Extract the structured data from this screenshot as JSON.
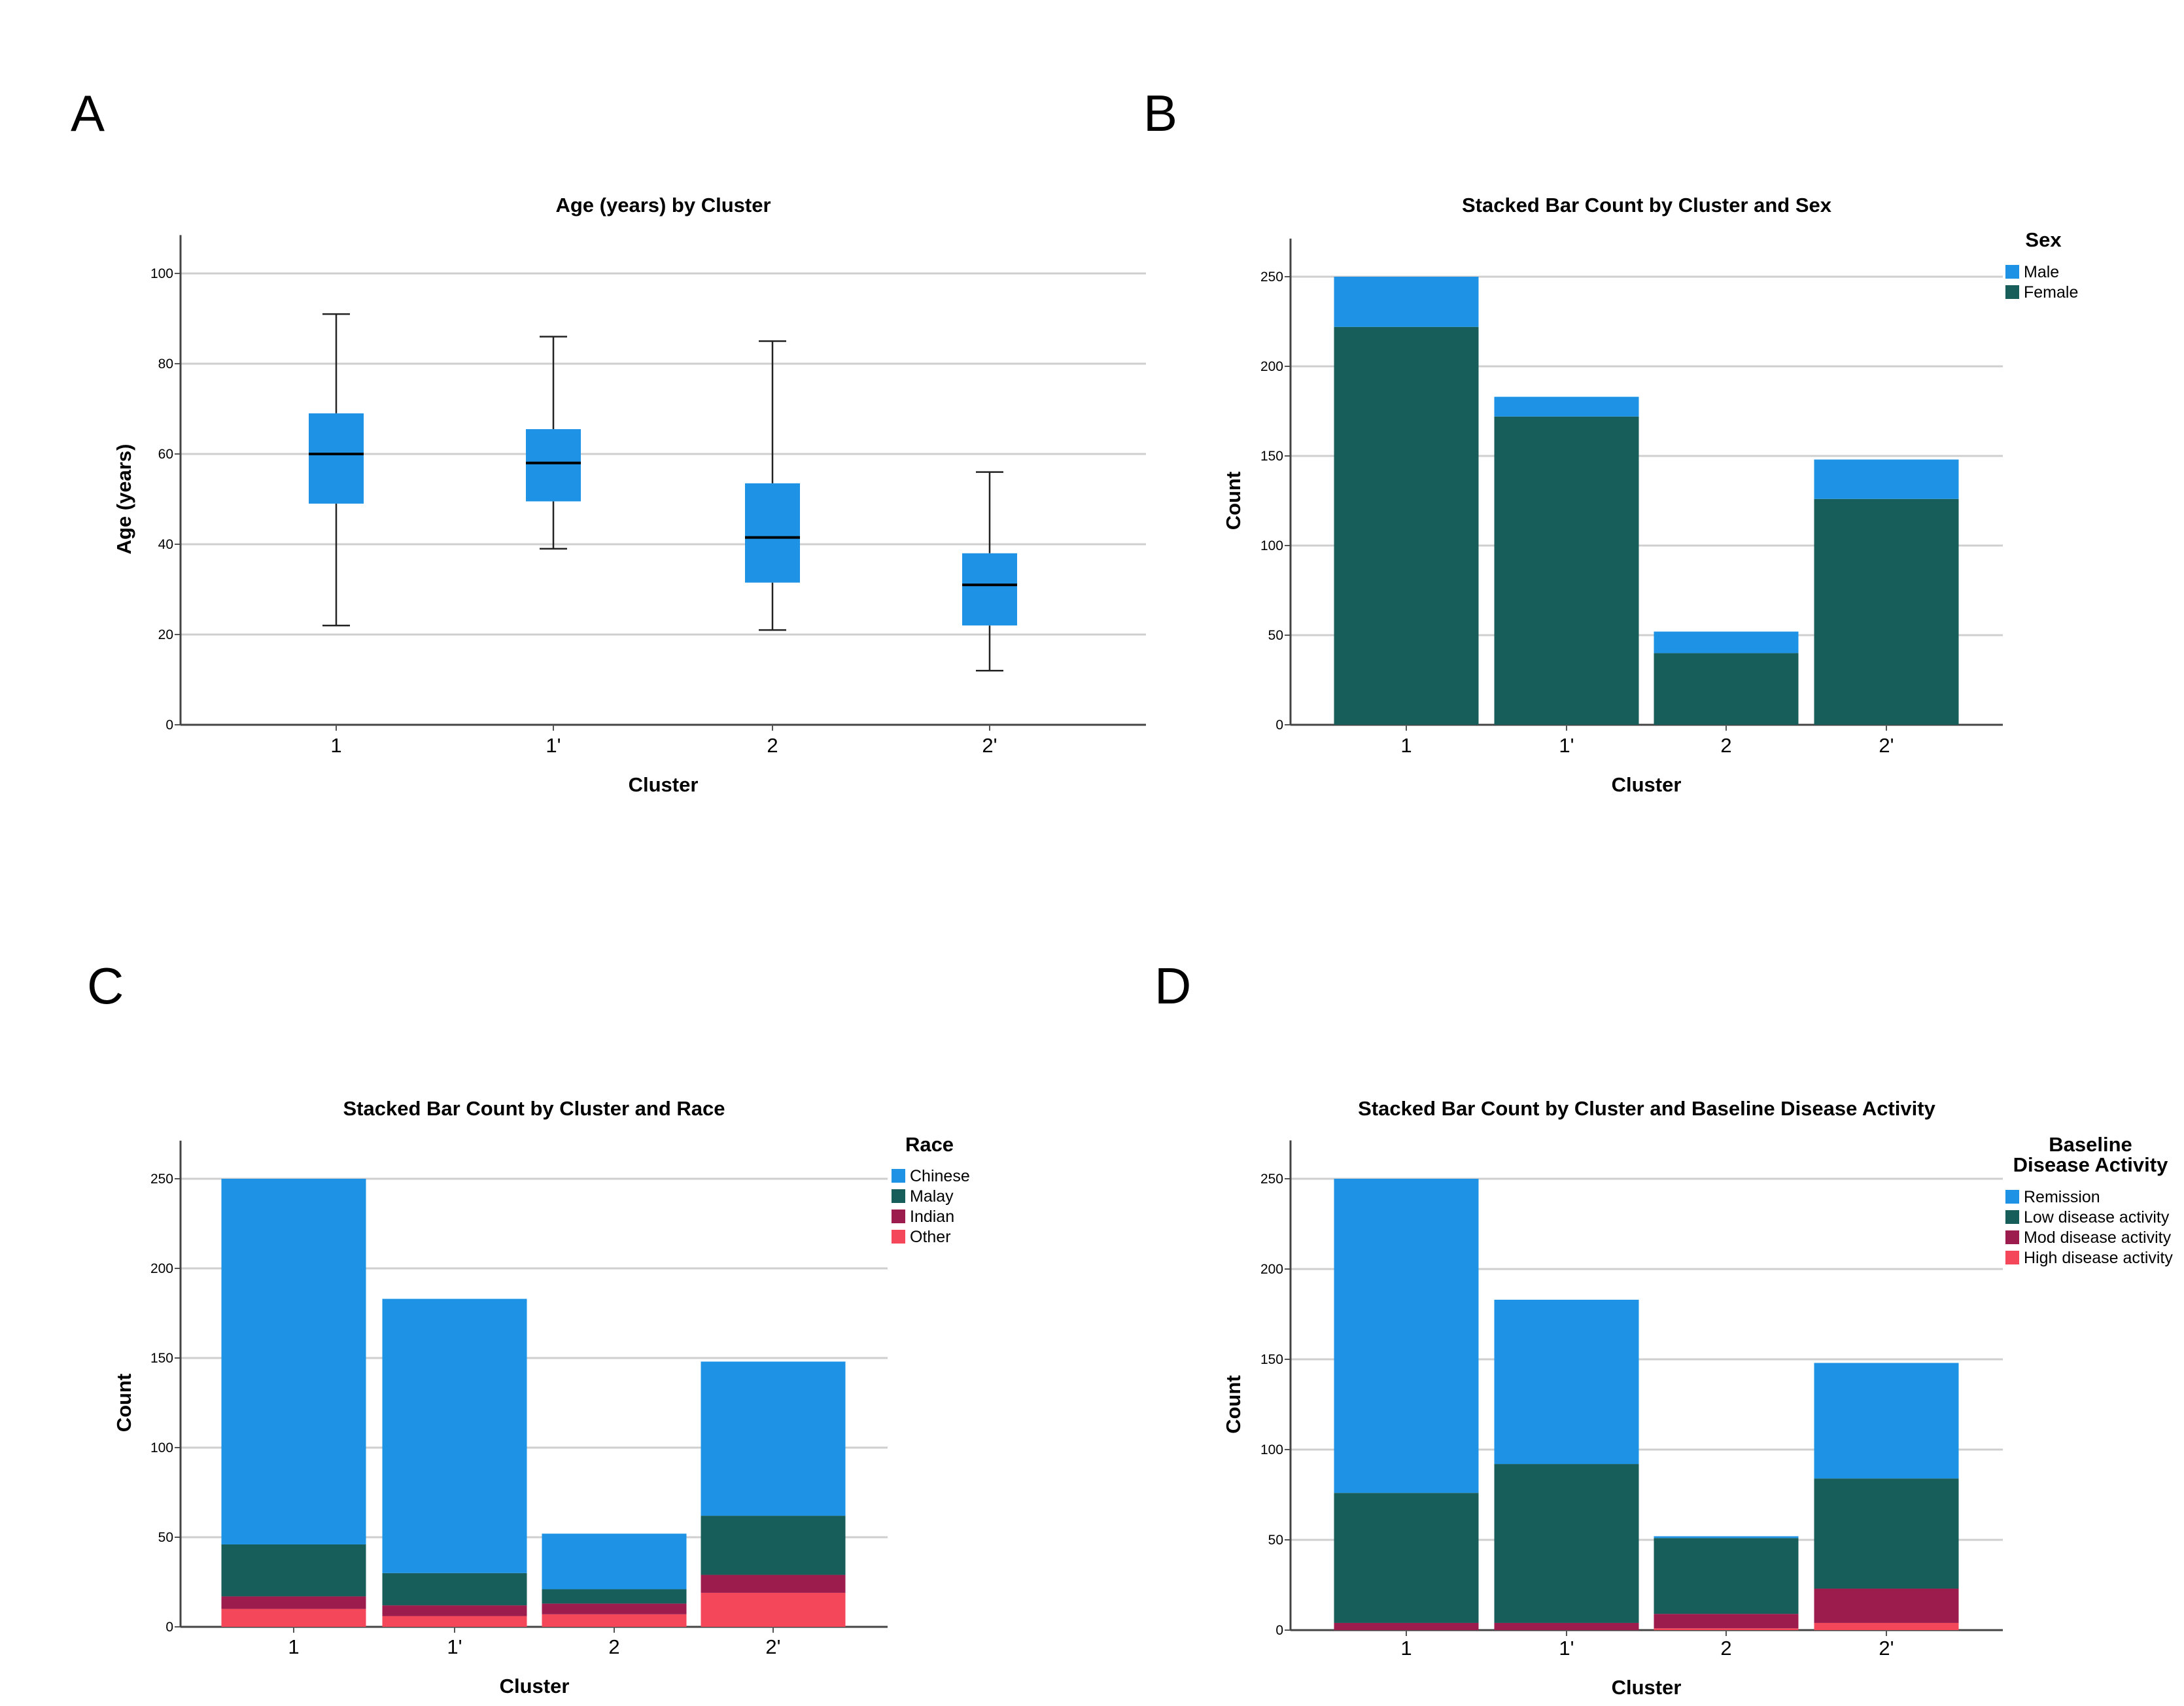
{
  "panels": {
    "a": "A",
    "b": "B",
    "c": "C",
    "d": "D"
  },
  "chart_data": [
    {
      "panel": "A",
      "type": "box",
      "title": "Age (years) by Cluster",
      "xlabel": "Cluster",
      "ylabel": "Age (years)",
      "ylim": [
        0,
        110
      ],
      "yticks": [
        0,
        20,
        40,
        60,
        80,
        100
      ],
      "categories": [
        "1",
        "1'",
        "2",
        "2'"
      ],
      "boxes": [
        {
          "min": 22,
          "q1": 49,
          "median": 60,
          "q3": 69,
          "max": 91
        },
        {
          "min": 39,
          "q1": 49.5,
          "median": 58,
          "q3": 65.5,
          "max": 86
        },
        {
          "min": 21,
          "q1": 31.5,
          "median": 41.5,
          "q3": 53.5,
          "max": 85
        },
        {
          "min": 12,
          "q1": 22,
          "median": 31,
          "q3": 38,
          "max": 56
        }
      ],
      "color": "#1e93e6"
    },
    {
      "panel": "B",
      "type": "stacked-bar",
      "title": "Stacked Bar Count by Cluster and Sex",
      "xlabel": "Cluster",
      "ylabel": "Count",
      "ylim": [
        0,
        275
      ],
      "yticks": [
        0,
        50,
        100,
        150,
        200,
        250
      ],
      "categories": [
        "1",
        "1'",
        "2",
        "2'"
      ],
      "legend_title": [
        "Sex"
      ],
      "series": [
        {
          "name": "Male",
          "color": "#1e93e6",
          "values": [
            28,
            11,
            12,
            22
          ]
        },
        {
          "name": "Female",
          "color": "#175e5b",
          "values": [
            222,
            172,
            40,
            126
          ]
        }
      ]
    },
    {
      "panel": "C",
      "type": "stacked-bar",
      "title": "Stacked Bar Count by Cluster and Race",
      "xlabel": "Cluster",
      "ylabel": "Count",
      "ylim": [
        0,
        275
      ],
      "yticks": [
        0,
        50,
        100,
        150,
        200,
        250
      ],
      "categories": [
        "1",
        "1'",
        "2",
        "2'"
      ],
      "legend_title": [
        "Race"
      ],
      "series": [
        {
          "name": "Chinese",
          "color": "#1e93e6",
          "values": [
            204,
            153,
            31,
            86
          ]
        },
        {
          "name": "Malay",
          "color": "#175e5b",
          "values": [
            29,
            18,
            8,
            33
          ]
        },
        {
          "name": "Indian",
          "color": "#9b1c4d",
          "values": [
            7,
            6,
            6,
            10
          ]
        },
        {
          "name": "Other",
          "color": "#f5475a",
          "values": [
            10,
            6,
            7,
            19
          ]
        }
      ]
    },
    {
      "panel": "D",
      "type": "stacked-bar",
      "title": "Stacked Bar Count by Cluster and Baseline Disease Activity",
      "xlabel": "Cluster",
      "ylabel": "Count",
      "ylim": [
        0,
        275
      ],
      "yticks": [
        0,
        50,
        100,
        150,
        200,
        250
      ],
      "categories": [
        "1",
        "1'",
        "2",
        "2'"
      ],
      "legend_title": [
        "Baseline",
        "Disease Activity"
      ],
      "series": [
        {
          "name": "Remission",
          "color": "#1e93e6",
          "values": [
            174,
            91,
            1,
            64
          ]
        },
        {
          "name": "Low disease activity",
          "color": "#175e5b",
          "values": [
            72,
            88,
            42,
            61
          ]
        },
        {
          "name": "Mod disease activity",
          "color": "#9b1c4d",
          "values": [
            4,
            4,
            8,
            19
          ]
        },
        {
          "name": "High disease activity",
          "color": "#f5475a",
          "values": [
            0,
            0,
            1,
            4
          ]
        }
      ]
    }
  ]
}
